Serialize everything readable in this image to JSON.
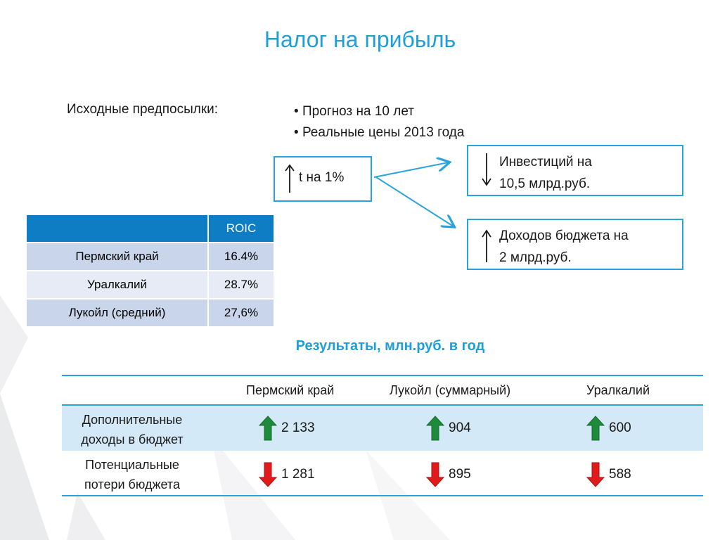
{
  "title": "Налог на прибыль",
  "premises": {
    "label": "Исходные предпосылки:",
    "bullets": [
      "Прогноз на 10 лет",
      "Реальные цены 2013 года"
    ]
  },
  "flow": {
    "source": {
      "arrow": "up",
      "text": "t на 1%"
    },
    "targets": [
      {
        "arrow": "down",
        "line1": "Инвестиций на",
        "line2": "10,5 млрд.руб."
      },
      {
        "arrow": "up",
        "line1": "Доходов бюджета на",
        "line2": "2 млрд.руб."
      }
    ]
  },
  "roic_table": {
    "header": [
      "",
      "ROIC"
    ],
    "rows": [
      [
        "Пермский край",
        "16.4%"
      ],
      [
        "Уралкалий",
        "28.7%"
      ],
      [
        "Лукойл (средний)",
        "27,6%"
      ]
    ]
  },
  "results": {
    "title": "Результаты, млн.руб. в год",
    "columns": [
      "Пермский край",
      "Лукойл (суммарный)",
      "Уралкалий"
    ],
    "rows": [
      {
        "label_line1": "Дополнительные",
        "label_line2": "доходы в бюджет",
        "direction": "up",
        "values": [
          "2 133",
          "904",
          "600"
        ]
      },
      {
        "label_line1": "Потенциальные",
        "label_line2": "потери бюджета",
        "direction": "down",
        "values": [
          "1 281",
          "895",
          "588"
        ]
      }
    ]
  },
  "colors": {
    "accent": "#1e9fd8",
    "table_header": "#0e7dc4",
    "arrow_up": "#1f8a3b",
    "arrow_down": "#e01b1b"
  }
}
